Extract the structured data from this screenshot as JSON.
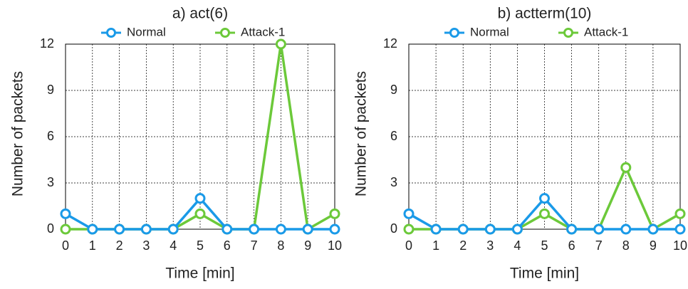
{
  "chart_data": [
    {
      "type": "line",
      "title": "a) act(6)",
      "xlabel": "Time [min]",
      "ylabel": "Number of packets",
      "x": [
        0,
        1,
        2,
        3,
        4,
        5,
        6,
        7,
        8,
        9,
        10
      ],
      "xlim": [
        0,
        10
      ],
      "xticks": [
        0,
        1,
        2,
        3,
        4,
        5,
        6,
        7,
        8,
        9,
        10
      ],
      "ylim": [
        0,
        12
      ],
      "yticks": [
        0,
        3,
        6,
        9,
        12
      ],
      "grid": true,
      "series": [
        {
          "name": "Normal",
          "color": "#1a9ae8",
          "values": [
            1,
            0,
            0,
            0,
            0,
            2,
            0,
            0,
            0,
            0,
            0
          ]
        },
        {
          "name": "Attack-1",
          "color": "#6cc93a",
          "values": [
            0,
            0,
            0,
            0,
            0,
            1,
            0,
            0,
            12,
            0,
            1
          ]
        }
      ]
    },
    {
      "type": "line",
      "title": "b) actterm(10)",
      "xlabel": "Time [min]",
      "ylabel": "Number of packets",
      "x": [
        0,
        1,
        2,
        3,
        4,
        5,
        6,
        7,
        8,
        9,
        10
      ],
      "xlim": [
        0,
        10
      ],
      "xticks": [
        0,
        1,
        2,
        3,
        4,
        5,
        6,
        7,
        8,
        9,
        10
      ],
      "ylim": [
        0,
        12
      ],
      "yticks": [
        0,
        3,
        6,
        9,
        12
      ],
      "grid": true,
      "series": [
        {
          "name": "Normal",
          "color": "#1a9ae8",
          "values": [
            1,
            0,
            0,
            0,
            0,
            2,
            0,
            0,
            0,
            0,
            0
          ]
        },
        {
          "name": "Attack-1",
          "color": "#6cc93a",
          "values": [
            0,
            0,
            0,
            0,
            0,
            1,
            0,
            0,
            4,
            0,
            1
          ]
        }
      ]
    }
  ]
}
